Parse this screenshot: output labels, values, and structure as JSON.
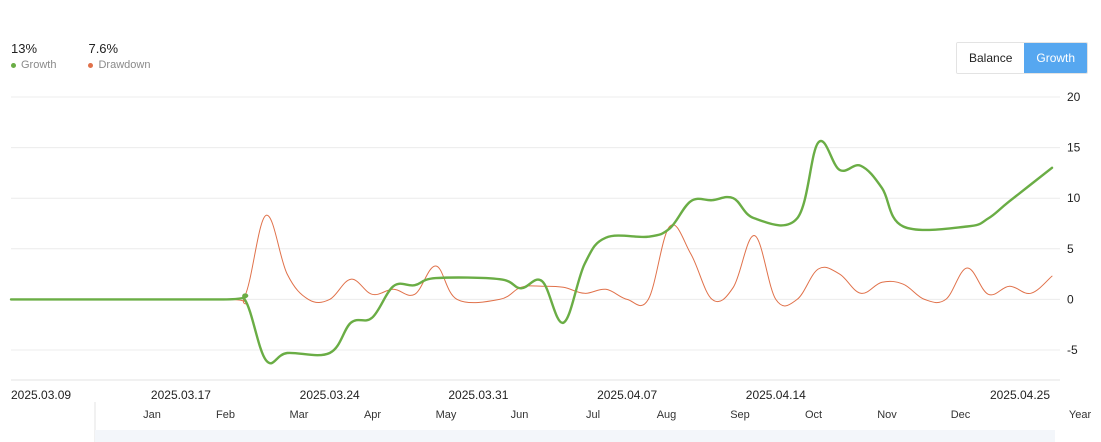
{
  "stats": [
    {
      "value": "13%",
      "label": "Growth",
      "color": "#6aad45"
    },
    {
      "value": "7.6%",
      "label": "Drawdown",
      "color": "#e0714a"
    }
  ],
  "toggle": {
    "balance_label": "Balance",
    "growth_label": "Growth",
    "active": "growth"
  },
  "chart_data": {
    "type": "line",
    "ylim": [
      -5,
      20
    ],
    "y_ticks": [
      "20",
      "15",
      "10",
      "5",
      "0",
      "-5"
    ],
    "x_ticks": [
      "2025.03.09",
      "2025.03.17",
      "2025.03.24",
      "2025.03.31",
      "2025.04.07",
      "2025.04.14",
      "2025.04.25"
    ],
    "navigator_ticks": [
      "Jan",
      "Feb",
      "Mar",
      "Apr",
      "May",
      "Jun",
      "Jul",
      "Aug",
      "Sep",
      "Oct",
      "Nov",
      "Dec",
      "Year"
    ],
    "series": [
      {
        "name": "Growth",
        "color": "#6aad45",
        "points": [
          [
            "2025.03.09",
            0
          ],
          [
            "2025.03.19",
            0
          ],
          [
            "2025.03.20",
            0
          ],
          [
            "2025.03.21",
            -6
          ],
          [
            "2025.03.22",
            -5.3
          ],
          [
            "2025.03.24",
            -5.3
          ],
          [
            "2025.03.25",
            -2.3
          ],
          [
            "2025.03.26",
            -1.8
          ],
          [
            "2025.03.27",
            1.3
          ],
          [
            "2025.03.28",
            1.4
          ],
          [
            "2025.03.29",
            2.1
          ],
          [
            "2025.04.01",
            2.0
          ],
          [
            "2025.04.02",
            1.1
          ],
          [
            "2025.04.03",
            1.8
          ],
          [
            "2025.04.04",
            -2.3
          ],
          [
            "2025.04.05",
            3.5
          ],
          [
            "2025.04.06",
            6.1
          ],
          [
            "2025.04.08",
            6.2
          ],
          [
            "2025.04.09",
            7.0
          ],
          [
            "2025.04.10",
            9.7
          ],
          [
            "2025.04.11",
            9.8
          ],
          [
            "2025.04.12",
            10.0
          ],
          [
            "2025.04.13",
            8.0
          ],
          [
            "2025.04.15",
            8.0
          ],
          [
            "2025.04.16",
            15.5
          ],
          [
            "2025.04.17",
            12.8
          ],
          [
            "2025.04.18",
            13.2
          ],
          [
            "2025.04.19",
            11.0
          ],
          [
            "2025.04.20",
            7.2
          ],
          [
            "2025.04.23",
            7.2
          ],
          [
            "2025.04.24",
            8.0
          ],
          [
            "2025.04.25",
            9.7
          ],
          [
            "2025.04.27",
            13.0
          ]
        ]
      },
      {
        "name": "Drawdown",
        "color": "#e0714a",
        "points": [
          [
            "2025.03.09",
            0
          ],
          [
            "2025.03.19",
            0
          ],
          [
            "2025.03.20",
            0.3
          ],
          [
            "2025.03.21",
            8.3
          ],
          [
            "2025.03.22",
            2.5
          ],
          [
            "2025.03.23",
            0
          ],
          [
            "2025.03.24",
            0
          ],
          [
            "2025.03.25",
            2.0
          ],
          [
            "2025.03.26",
            0.5
          ],
          [
            "2025.03.27",
            1.0
          ],
          [
            "2025.03.28",
            0.5
          ],
          [
            "2025.03.29",
            3.3
          ],
          [
            "2025.03.30",
            0
          ],
          [
            "2025.04.01",
            0
          ],
          [
            "2025.04.02",
            1.2
          ],
          [
            "2025.04.03",
            1.3
          ],
          [
            "2025.04.04",
            1.2
          ],
          [
            "2025.04.05",
            0.6
          ],
          [
            "2025.04.06",
            1.0
          ],
          [
            "2025.04.07",
            0
          ],
          [
            "2025.04.08",
            0
          ],
          [
            "2025.04.09",
            7.2
          ],
          [
            "2025.04.10",
            4.5
          ],
          [
            "2025.04.11",
            0
          ],
          [
            "2025.04.12",
            1.2
          ],
          [
            "2025.04.13",
            6.3
          ],
          [
            "2025.04.14",
            0
          ],
          [
            "2025.04.15",
            0
          ],
          [
            "2025.04.16",
            3.0
          ],
          [
            "2025.04.17",
            2.5
          ],
          [
            "2025.04.18",
            0.6
          ],
          [
            "2025.04.19",
            1.7
          ],
          [
            "2025.04.20",
            1.5
          ],
          [
            "2025.04.21",
            0
          ],
          [
            "2025.04.22",
            0
          ],
          [
            "2025.04.23",
            3.1
          ],
          [
            "2025.04.24",
            0.5
          ],
          [
            "2025.04.25",
            1.3
          ],
          [
            "2025.04.26",
            0.6
          ],
          [
            "2025.04.27",
            2.3
          ]
        ]
      }
    ]
  }
}
